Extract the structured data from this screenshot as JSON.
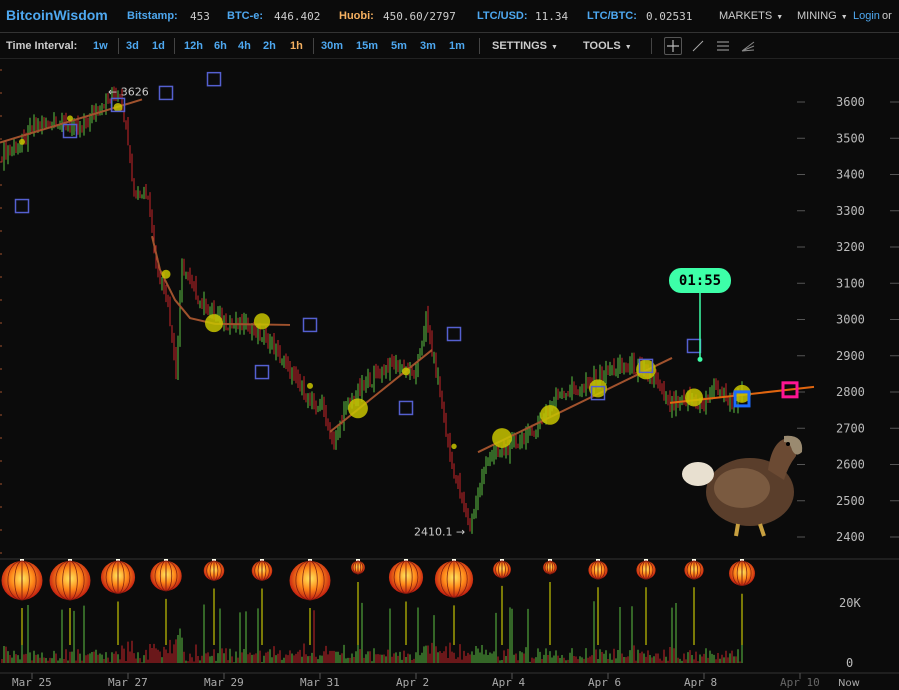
{
  "header": {
    "logo": "BitcoinWisdom",
    "tickers": [
      {
        "label": "Bitstamp:",
        "value": "453"
      },
      {
        "label": "BTC-e:",
        "value": "446.402"
      },
      {
        "label": "Huobi:",
        "value": "450.60/2797",
        "color": "#f5b060"
      },
      {
        "label": "LTC/USD:",
        "value": "11.34"
      },
      {
        "label": "LTC/BTC:",
        "value": "0.02531"
      }
    ],
    "menus": [
      "MARKETS",
      "MINING"
    ],
    "login": "Login",
    "or": "or"
  },
  "toolbar": {
    "label": "Time Interval:",
    "intervals": [
      [
        "1w"
      ],
      [
        "3d",
        "1d"
      ],
      [
        "12h",
        "6h",
        "4h",
        "2h",
        "1h"
      ],
      [
        "30m",
        "15m",
        "5m",
        "3m",
        "1m"
      ]
    ],
    "active": "1h",
    "settings": "SETTINGS",
    "tools": "TOOLS",
    "tool_icons": [
      "crosshair-icon",
      "line-icon",
      "horizontal-lines-icon",
      "fan-icon"
    ]
  },
  "chart_data": {
    "type": "candlestick",
    "price_axis": {
      "ticks": [
        2400,
        2500,
        2600,
        2700,
        2800,
        2900,
        3000,
        3100,
        3200,
        3300,
        3400,
        3500,
        3600
      ],
      "ylim": [
        2385,
        3790
      ]
    },
    "volume_axis": {
      "ticks": [
        {
          "v": 0,
          "label": "0"
        },
        {
          "v": 20000,
          "label": "20K"
        }
      ]
    },
    "x_ticks": [
      {
        "t": "03-25 00:00",
        "label": "Mar 25"
      },
      {
        "t": "03-27 00:00",
        "label": "Mar 27"
      },
      {
        "t": "03-29 00:00",
        "label": "Mar 29"
      },
      {
        "t": "03-31 00:00",
        "label": "Mar 31"
      },
      {
        "t": "04-02 00:00",
        "label": "Apr 2"
      },
      {
        "t": "04-04 00:00",
        "label": "Apr 4"
      },
      {
        "t": "04-06 00:00",
        "label": "Apr 6"
      },
      {
        "t": "04-08 00:00",
        "label": "Apr 8"
      },
      {
        "t": "04-10 00:00",
        "label": "Apr 10",
        "dim": true
      }
    ],
    "now_label": "Now",
    "price_path": [
      [
        "03-24 08:00",
        3450
      ],
      [
        "03-24 20:00",
        3490
      ],
      [
        "03-25 00:00",
        3530
      ],
      [
        "03-25 12:00",
        3550
      ],
      [
        "03-26 00:00",
        3520
      ],
      [
        "03-26 12:00",
        3600
      ],
      [
        "03-26 20:00",
        3626
      ],
      [
        "03-27 00:00",
        3500
      ],
      [
        "03-27 03:00",
        3350
      ],
      [
        "03-27 10:00",
        3350
      ],
      [
        "03-27 14:00",
        3150
      ],
      [
        "03-27 20:00",
        3050
      ],
      [
        "03-28 00:00",
        2850
      ],
      [
        "03-28 03:00",
        3150
      ],
      [
        "03-28 12:00",
        3050
      ],
      [
        "03-29 00:00",
        2990
      ],
      [
        "03-29 12:00",
        2985
      ],
      [
        "03-30 00:00",
        2930
      ],
      [
        "03-30 12:00",
        2830
      ],
      [
        "03-30 22:00",
        2750
      ],
      [
        "03-31 00:00",
        2780
      ],
      [
        "03-31 07:00",
        2650
      ],
      [
        "03-31 12:00",
        2750
      ],
      [
        "04-01 00:00",
        2830
      ],
      [
        "04-01 12:00",
        2880
      ],
      [
        "04-02 00:00",
        2850
      ],
      [
        "04-02 05:00",
        3000
      ],
      [
        "04-02 12:00",
        2800
      ],
      [
        "04-02 17:00",
        2620
      ],
      [
        "04-03 00:00",
        2480
      ],
      [
        "04-03 03:00",
        2430
      ],
      [
        "04-03 12:00",
        2620
      ],
      [
        "04-04 00:00",
        2650
      ],
      [
        "04-04 12:00",
        2700
      ],
      [
        "04-05 00:00",
        2800
      ],
      [
        "04-05 12:00",
        2810
      ],
      [
        "04-06 00:00",
        2860
      ],
      [
        "04-06 12:00",
        2870
      ],
      [
        "04-07 00:00",
        2830
      ],
      [
        "04-07 07:00",
        2760
      ],
      [
        "04-07 17:00",
        2780
      ],
      [
        "04-08 00:00",
        2760
      ],
      [
        "04-08 05:00",
        2820
      ],
      [
        "04-08 14:00",
        2770
      ],
      [
        "04-08 19:00",
        2790
      ]
    ],
    "annotations": [
      {
        "t": "03-26 20:00",
        "price": 3626,
        "label": "← 3626"
      },
      {
        "t": "04-03 03:00",
        "price": 2410.1,
        "label": "2410.1 →"
      }
    ],
    "markers": [
      {
        "t": "03-24 19:00",
        "square": 3313,
        "dot": 3490,
        "dot_size": 1,
        "lantern": 3
      },
      {
        "t": "03-25 19:00",
        "square": 3520,
        "dot": 3555,
        "dot_size": 1,
        "lantern": 3
      },
      {
        "t": "03-26 19:00",
        "square": 3592,
        "dot": 3585,
        "dot_size": 1.5,
        "lantern": 2.5
      },
      {
        "t": "03-27 19:00",
        "square": 3625,
        "dot": 3125,
        "dot_size": 1.5,
        "lantern": 2.3
      },
      {
        "t": "03-28 19:00",
        "square": 3663,
        "dot": 2990,
        "dot_size": 3,
        "lantern": 1.5
      },
      {
        "t": "03-29 19:00",
        "square": 2855,
        "dot": 2995,
        "dot_size": 2.7,
        "lantern": 1.5
      },
      {
        "t": "03-30 19:00",
        "square": 2985,
        "dot": 2817,
        "dot_size": 1,
        "lantern": 3
      },
      {
        "t": "03-31 19:00",
        "dot": 2755,
        "dot_size": 3.3,
        "lantern": 1
      },
      {
        "t": "04-01 19:00",
        "square": 2756,
        "dot": 2857,
        "dot_size": 1.3,
        "lantern": 2.5
      },
      {
        "t": "04-02 19:00",
        "square": 2960,
        "dot": 2650,
        "dot_size": 0.9,
        "lantern": 2.8
      },
      {
        "t": "04-03 19:00",
        "dot": 2673,
        "dot_size": 3.3,
        "lantern": 1.3
      },
      {
        "t": "04-04 19:00",
        "dot": 2737,
        "dot_size": 3.3,
        "lantern": 1
      },
      {
        "t": "04-05 19:00",
        "square": 2797,
        "dot": 2810,
        "dot_size": 3,
        "lantern": 1.4
      },
      {
        "t": "04-06 19:00",
        "square": 2872,
        "dot": 2862,
        "dot_size": 3.3,
        "lantern": 1.4
      },
      {
        "t": "04-07 19:00",
        "square": 2927,
        "dot": 2785,
        "dot_size": 3,
        "lantern": 1.4
      },
      {
        "t": "04-08 19:00",
        "square": 2781,
        "square_color": "#1e6bff",
        "dot": 2795,
        "dot_size": 3,
        "lantern": 1.9
      },
      {
        "t": "04-09 19:00",
        "square": 2806,
        "square_color": "#ff1493"
      }
    ],
    "trendlines": [
      {
        "color": "#a0522d",
        "points": [
          [
            "03-24 08:00",
            3488
          ],
          [
            "03-27 07:00",
            3607
          ]
        ]
      },
      {
        "color": "#a0522d",
        "points": [
          [
            "03-27 12:00",
            3230
          ],
          [
            "03-27 16:00",
            3137
          ],
          [
            "03-27 23:30",
            3054
          ],
          [
            "03-28 07:00",
            3004
          ],
          [
            "03-28 19:30",
            2988
          ],
          [
            "03-30 09:00",
            2985
          ]
        ]
      },
      {
        "color": "#a0522d",
        "points": [
          [
            "03-31 05:00",
            2690
          ],
          [
            "04-02 08:00",
            2916
          ]
        ]
      },
      {
        "color": "#a0522d",
        "points": [
          [
            "04-03 07:00",
            2634
          ],
          [
            "04-07 08:00",
            2894
          ]
        ]
      },
      {
        "color": "#e0650f",
        "points": [
          [
            "04-07 07:00",
            2770
          ],
          [
            "04-10 07:00",
            2814
          ]
        ]
      }
    ],
    "countdown": {
      "label": "01:55",
      "t": "04-07 22:00",
      "price": 2890,
      "color": "#3dffa8"
    },
    "colors": {
      "up": "#5cc043",
      "down": "#c8242a",
      "square": "#5560d0",
      "dot": "#c8c400"
    }
  },
  "mascot": "dodo-mascot"
}
